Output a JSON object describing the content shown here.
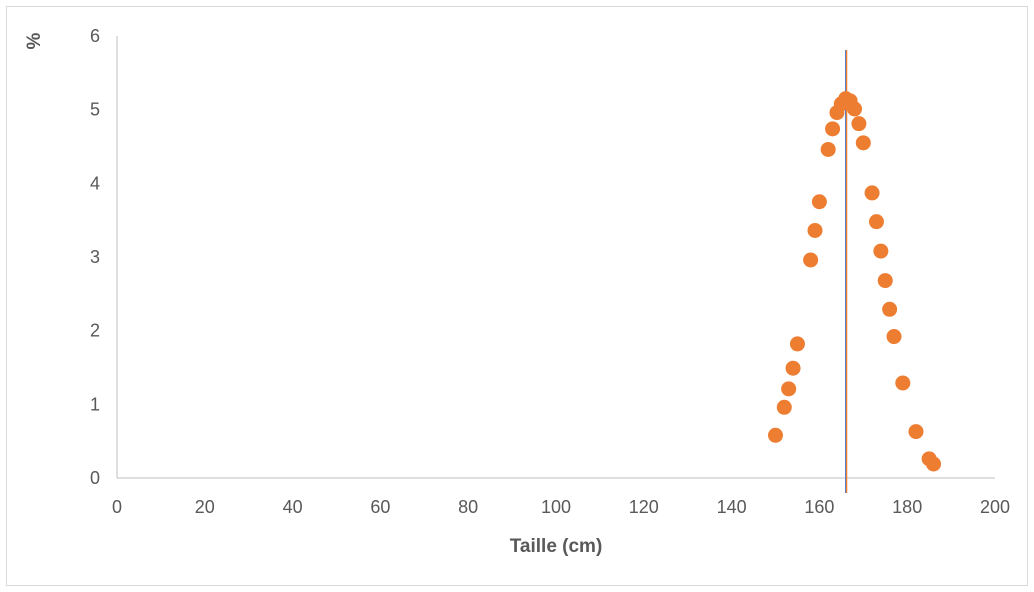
{
  "chart_data": {
    "type": "scatter",
    "xlabel": "Taille (cm)",
    "ylabel": "%",
    "xlim": [
      0,
      200
    ],
    "ylim": [
      0,
      6
    ],
    "x_ticks": [
      0,
      20,
      40,
      60,
      80,
      100,
      120,
      140,
      160,
      180,
      200
    ],
    "y_ticks": [
      0,
      1,
      2,
      3,
      4,
      5,
      6
    ],
    "grid": false,
    "legend": "none",
    "series": [
      {
        "color": "#ed7d31",
        "points": [
          {
            "x": 150,
            "y": 0.58
          },
          {
            "x": 152,
            "y": 0.96
          },
          {
            "x": 153,
            "y": 1.21
          },
          {
            "x": 154,
            "y": 1.49
          },
          {
            "x": 155,
            "y": 1.82
          },
          {
            "x": 158,
            "y": 2.96
          },
          {
            "x": 159,
            "y": 3.36
          },
          {
            "x": 160,
            "y": 3.75
          },
          {
            "x": 162,
            "y": 4.46
          },
          {
            "x": 163,
            "y": 4.74
          },
          {
            "x": 164,
            "y": 4.96
          },
          {
            "x": 165,
            "y": 5.08
          },
          {
            "x": 166,
            "y": 5.15
          },
          {
            "x": 167,
            "y": 5.12
          },
          {
            "x": 168,
            "y": 5.01
          },
          {
            "x": 169,
            "y": 4.81
          },
          {
            "x": 170,
            "y": 4.55
          },
          {
            "x": 172,
            "y": 3.87
          },
          {
            "x": 173,
            "y": 3.48
          },
          {
            "x": 174,
            "y": 3.08
          },
          {
            "x": 175,
            "y": 2.68
          },
          {
            "x": 176,
            "y": 2.29
          },
          {
            "x": 177,
            "y": 1.92
          },
          {
            "x": 179,
            "y": 1.29
          },
          {
            "x": 182,
            "y": 0.63
          },
          {
            "x": 185,
            "y": 0.26
          },
          {
            "x": 186,
            "y": 0.19
          }
        ]
      }
    ],
    "reference_lines": [
      {
        "x": 166.0,
        "color": "#4472c4"
      },
      {
        "x": 166.2,
        "color": "#ed7d31"
      }
    ]
  }
}
